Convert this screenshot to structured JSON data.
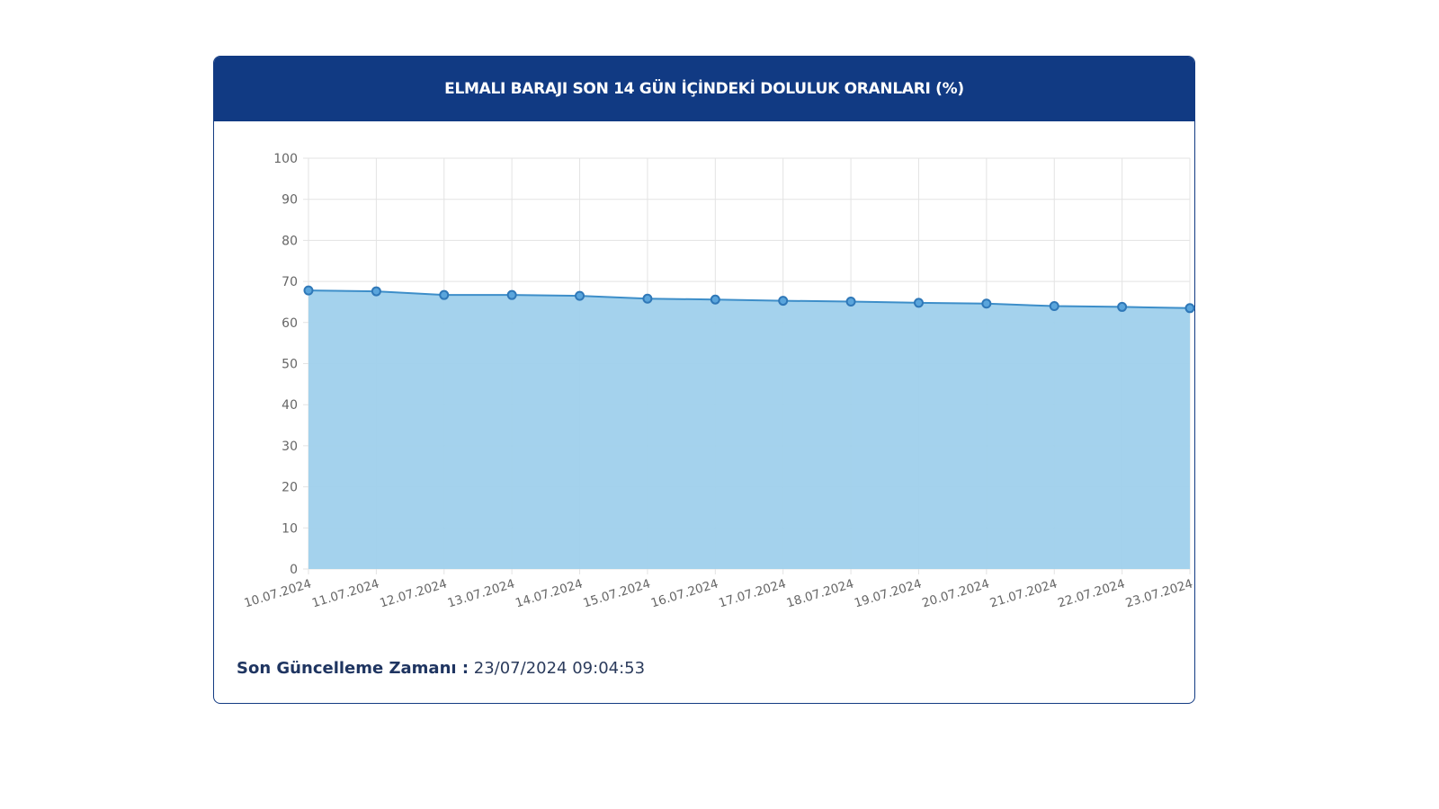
{
  "chart_data": {
    "type": "area",
    "title": "ELMALI BARAJI SON 14 GÜN İÇİNDEKİ DOLULUK ORANLARI (%)",
    "categories": [
      "10.07.2024",
      "11.07.2024",
      "12.07.2024",
      "13.07.2024",
      "14.07.2024",
      "15.07.2024",
      "16.07.2024",
      "17.07.2024",
      "18.07.2024",
      "19.07.2024",
      "20.07.2024",
      "21.07.2024",
      "22.07.2024",
      "23.07.2024"
    ],
    "values": [
      67.8,
      67.6,
      66.7,
      66.7,
      66.5,
      65.8,
      65.6,
      65.3,
      65.1,
      64.8,
      64.6,
      64.0,
      63.8,
      63.5
    ],
    "ylim": [
      0,
      100
    ],
    "yticks": [
      0,
      10,
      20,
      30,
      40,
      50,
      60,
      70,
      80,
      90,
      100
    ],
    "grid": true,
    "xlabel": "",
    "ylabel": "",
    "colors": {
      "fill": "#9fd0ec",
      "line": "#3d8ec9",
      "point": "#2f78b8",
      "header": "#113a83"
    }
  },
  "footer": {
    "label": "Son Güncelleme Zamanı :",
    "value": "23/07/2024 09:04:53"
  }
}
